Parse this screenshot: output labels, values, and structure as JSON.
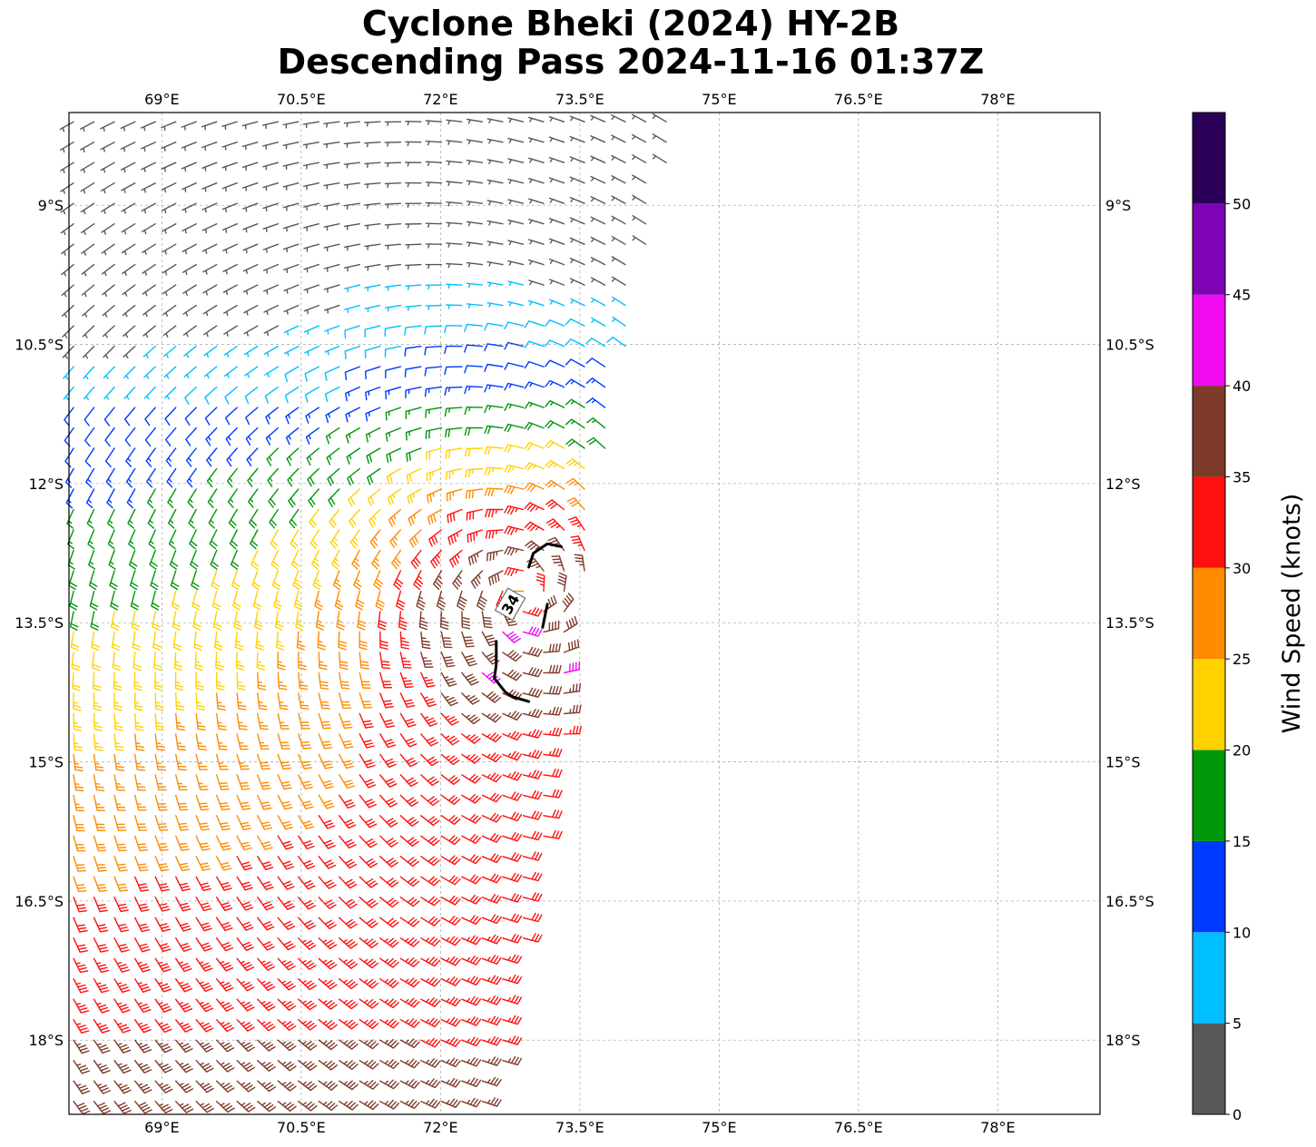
{
  "chart_data": {
    "type": "wind-barb-map",
    "title_line1": "Cyclone Bheki (2024) HY-2B",
    "title_line2": "Descending Pass 2024-11-16 01:37Z",
    "lon_range": [
      68.0,
      79.1
    ],
    "lat_range": [
      -8.0,
      -18.8
    ],
    "lon_ticks": [
      69,
      70.5,
      72,
      73.5,
      75,
      76.5,
      78
    ],
    "lon_tick_labels": [
      "69°E",
      "70.5°E",
      "72°E",
      "73.5°E",
      "75°E",
      "76.5°E",
      "78°E"
    ],
    "lat_ticks": [
      -9,
      -10.5,
      -12,
      -13.5,
      -15,
      -16.5,
      -18
    ],
    "lat_tick_labels": [
      "9°S",
      "10.5°S",
      "12°S",
      "13.5°S",
      "15°S",
      "16.5°S",
      "18°S"
    ],
    "grid": true,
    "storm_center": {
      "lon": 72.9,
      "lat": -13.2
    },
    "contour_34kt": {
      "label": "34",
      "points": [
        [
          72.6,
          -13.7
        ],
        [
          72.6,
          -13.95
        ],
        [
          72.58,
          -14.1
        ],
        [
          72.7,
          -14.25
        ],
        [
          72.78,
          -14.3
        ],
        [
          72.95,
          -14.35
        ]
      ],
      "points2": [
        [
          72.95,
          -12.9
        ],
        [
          73.0,
          -12.75
        ],
        [
          73.15,
          -12.65
        ],
        [
          73.3,
          -12.68
        ]
      ],
      "points3": [
        [
          73.1,
          -13.55
        ],
        [
          73.15,
          -13.3
        ]
      ]
    },
    "colorbar": {
      "label": "Wind Speed (knots)",
      "ticks": [
        0,
        5,
        10,
        15,
        20,
        25,
        30,
        35,
        40,
        45,
        50
      ],
      "bounds": [
        0,
        5,
        10,
        15,
        20,
        25,
        30,
        35,
        40,
        45,
        50,
        55
      ],
      "colors": [
        "#585858",
        "#00bfff",
        "#0039ff",
        "#00960a",
        "#ffd200",
        "#ff8c00",
        "#ff1010",
        "#7f3b2a",
        "#f00af0",
        "#7d03b5",
        "#2c0058"
      ]
    },
    "swath": {
      "lon_min": 68.0,
      "lat_edge": [
        [
          -8.0,
          74.5
        ],
        [
          -9.0,
          74.4
        ],
        [
          -10.0,
          74.1
        ],
        [
          -11.0,
          73.9
        ],
        [
          -12.0,
          73.7
        ],
        [
          -13.0,
          73.55
        ],
        [
          -14.0,
          73.45
        ],
        [
          -15.0,
          73.3
        ],
        [
          -16.0,
          73.1
        ],
        [
          -17.0,
          72.9
        ],
        [
          -18.0,
          72.7
        ],
        [
          -18.8,
          72.6
        ]
      ],
      "spacing_deg": 0.22
    }
  }
}
